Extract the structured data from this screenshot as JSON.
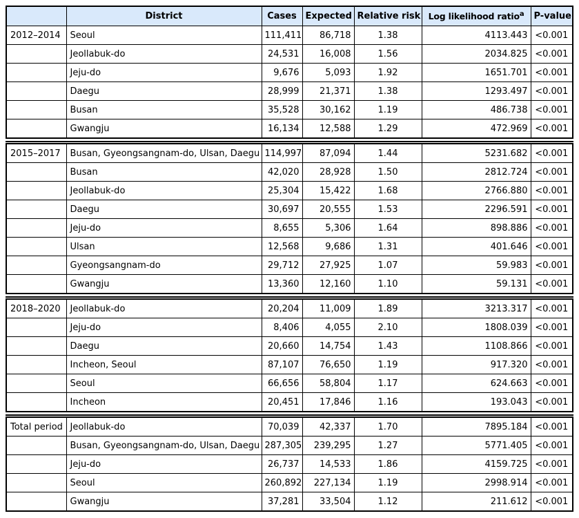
{
  "table": {
    "columns": [
      "",
      "District",
      "Cases",
      "Expected",
      "Relative risk",
      "Log likelihood ratio",
      "P-value"
    ],
    "footnote_marker": "a",
    "colors": {
      "header_bg": "#d9e9fb",
      "border": "#000000",
      "text": "#000000"
    },
    "groups": [
      {
        "period": "2012–2014",
        "rows": [
          {
            "district": "Seoul",
            "cases": "111,411",
            "expected": "86,718",
            "relative_risk": "1.38",
            "log_likelihood_ratio": "4113.443",
            "p_value": "<0.001"
          },
          {
            "district": "Jeollabuk-do",
            "cases": "24,531",
            "expected": "16,008",
            "relative_risk": "1.56",
            "log_likelihood_ratio": "2034.825",
            "p_value": "<0.001"
          },
          {
            "district": "Jeju-do",
            "cases": "9,676",
            "expected": "5,093",
            "relative_risk": "1.92",
            "log_likelihood_ratio": "1651.701",
            "p_value": "<0.001"
          },
          {
            "district": "Daegu",
            "cases": "28,999",
            "expected": "21,371",
            "relative_risk": "1.38",
            "log_likelihood_ratio": "1293.497",
            "p_value": "<0.001"
          },
          {
            "district": "Busan",
            "cases": "35,528",
            "expected": "30,162",
            "relative_risk": "1.19",
            "log_likelihood_ratio": "486.738",
            "p_value": "<0.001"
          },
          {
            "district": "Gwangju",
            "cases": "16,134",
            "expected": "12,588",
            "relative_risk": "1.29",
            "log_likelihood_ratio": "472.969",
            "p_value": "<0.001"
          }
        ]
      },
      {
        "period": "2015–2017",
        "rows": [
          {
            "district": "Busan, Gyeongsangnam-do, Ulsan, Daegu",
            "cases": "114,997",
            "expected": "87,094",
            "relative_risk": "1.44",
            "log_likelihood_ratio": "5231.682",
            "p_value": "<0.001"
          },
          {
            "district": "Busan",
            "cases": "42,020",
            "expected": "28,928",
            "relative_risk": "1.50",
            "log_likelihood_ratio": "2812.724",
            "p_value": "<0.001"
          },
          {
            "district": "Jeollabuk-do",
            "cases": "25,304",
            "expected": "15,422",
            "relative_risk": "1.68",
            "log_likelihood_ratio": "2766.880",
            "p_value": "<0.001"
          },
          {
            "district": "Daegu",
            "cases": "30,697",
            "expected": "20,555",
            "relative_risk": "1.53",
            "log_likelihood_ratio": "2296.591",
            "p_value": "<0.001"
          },
          {
            "district": "Jeju-do",
            "cases": "8,655",
            "expected": "5,306",
            "relative_risk": "1.64",
            "log_likelihood_ratio": "898.886",
            "p_value": "<0.001"
          },
          {
            "district": "Ulsan",
            "cases": "12,568",
            "expected": "9,686",
            "relative_risk": "1.31",
            "log_likelihood_ratio": "401.646",
            "p_value": "<0.001"
          },
          {
            "district": "Gyeongsangnam-do",
            "cases": "29,712",
            "expected": "27,925",
            "relative_risk": "1.07",
            "log_likelihood_ratio": "59.983",
            "p_value": "<0.001"
          },
          {
            "district": "Gwangju",
            "cases": "13,360",
            "expected": "12,160",
            "relative_risk": "1.10",
            "log_likelihood_ratio": "59.131",
            "p_value": "<0.001"
          }
        ]
      },
      {
        "period": "2018–2020",
        "rows": [
          {
            "district": "Jeollabuk-do",
            "cases": "20,204",
            "expected": "11,009",
            "relative_risk": "1.89",
            "log_likelihood_ratio": "3213.317",
            "p_value": "<0.001"
          },
          {
            "district": "Jeju-do",
            "cases": "8,406",
            "expected": "4,055",
            "relative_risk": "2.10",
            "log_likelihood_ratio": "1808.039",
            "p_value": "<0.001"
          },
          {
            "district": "Daegu",
            "cases": "20,660",
            "expected": "14,754",
            "relative_risk": "1.43",
            "log_likelihood_ratio": "1108.866",
            "p_value": "<0.001"
          },
          {
            "district": "Incheon, Seoul",
            "cases": "87,107",
            "expected": "76,650",
            "relative_risk": "1.19",
            "log_likelihood_ratio": "917.320",
            "p_value": "<0.001"
          },
          {
            "district": "Seoul",
            "cases": "66,656",
            "expected": "58,804",
            "relative_risk": "1.17",
            "log_likelihood_ratio": "624.663",
            "p_value": "<0.001"
          },
          {
            "district": "Incheon",
            "cases": "20,451",
            "expected": "17,846",
            "relative_risk": "1.16",
            "log_likelihood_ratio": "193.043",
            "p_value": "<0.001"
          }
        ]
      },
      {
        "period": "Total period",
        "rows": [
          {
            "district": "Jeollabuk-do",
            "cases": "70,039",
            "expected": "42,337",
            "relative_risk": "1.70",
            "log_likelihood_ratio": "7895.184",
            "p_value": "<0.001"
          },
          {
            "district": "Busan, Gyeongsangnam-do, Ulsan, Daegu",
            "cases": "287,305",
            "expected": "239,295",
            "relative_risk": "1.27",
            "log_likelihood_ratio": "5771.405",
            "p_value": "<0.001"
          },
          {
            "district": "Jeju-do",
            "cases": "26,737",
            "expected": "14,533",
            "relative_risk": "1.86",
            "log_likelihood_ratio": "4159.725",
            "p_value": "<0.001"
          },
          {
            "district": "Seoul",
            "cases": "260,892",
            "expected": "227,134",
            "relative_risk": "1.19",
            "log_likelihood_ratio": "2998.914",
            "p_value": "<0.001"
          },
          {
            "district": "Gwangju",
            "cases": "37,281",
            "expected": "33,504",
            "relative_risk": "1.12",
            "log_likelihood_ratio": "211.612",
            "p_value": "<0.001"
          }
        ]
      }
    ]
  }
}
